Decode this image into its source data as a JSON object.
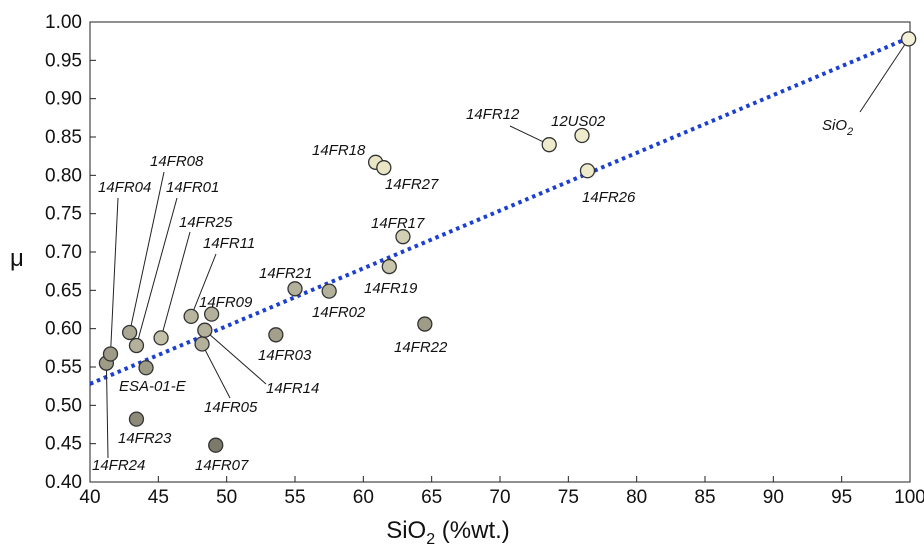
{
  "chart_data": {
    "type": "scatter",
    "title": "",
    "xlabel": "SiO",
    "xlabel_sub": "2",
    "xlabel_suffix": " (%wt.)",
    "ylabel": "μ",
    "xlim": [
      40,
      100
    ],
    "ylim": [
      0.4,
      1.0
    ],
    "x_ticks": [
      "40",
      "45",
      "50",
      "55",
      "60",
      "65",
      "70",
      "75",
      "80",
      "85",
      "90",
      "95",
      "100"
    ],
    "y_ticks": [
      "0.40",
      "0.45",
      "0.50",
      "0.55",
      "0.60",
      "0.65",
      "0.70",
      "0.75",
      "0.80",
      "0.85",
      "0.90",
      "0.95",
      "1.00"
    ],
    "grid": false,
    "trend_line": {
      "from": [
        40,
        0.528
      ],
      "to": [
        100,
        0.98
      ],
      "style": "dotted",
      "color": "#1a3fd1"
    },
    "points": [
      {
        "label": "14FR24",
        "x": 41.2,
        "y": 0.555,
        "color": "#9e9b87"
      },
      {
        "label": "14FR04",
        "x": 41.5,
        "y": 0.567,
        "color": "#9e9b87"
      },
      {
        "label": "14FR08",
        "x": 42.9,
        "y": 0.595,
        "color": "#aaa892"
      },
      {
        "label": "14FR01",
        "x": 43.4,
        "y": 0.578,
        "color": "#b3b19c"
      },
      {
        "label": "14FR23",
        "x": 43.4,
        "y": 0.482,
        "color": "#8d8a7a"
      },
      {
        "label": "ESA-01-E",
        "x": 44.1,
        "y": 0.549,
        "color": "#9e9b87"
      },
      {
        "label": "14FR25",
        "x": 45.2,
        "y": 0.588,
        "color": "#c2c0a6"
      },
      {
        "label": "14FR11",
        "x": 47.4,
        "y": 0.616,
        "color": "#b8b59f"
      },
      {
        "label": "14FR05",
        "x": 48.2,
        "y": 0.58,
        "color": "#b3b19c"
      },
      {
        "label": "14FR14",
        "x": 48.4,
        "y": 0.598,
        "color": "#b3b19c"
      },
      {
        "label": "14FR09",
        "x": 48.9,
        "y": 0.619,
        "color": "#b3b19c"
      },
      {
        "label": "14FR07",
        "x": 49.2,
        "y": 0.448,
        "color": "#7c7a6a"
      },
      {
        "label": "14FR03",
        "x": 53.6,
        "y": 0.592,
        "color": "#a39f8b"
      },
      {
        "label": "14FR21",
        "x": 55.0,
        "y": 0.652,
        "color": "#b3b19c"
      },
      {
        "label": "14FR02",
        "x": 57.5,
        "y": 0.649,
        "color": "#b3b19c"
      },
      {
        "label": "14FR18",
        "x": 60.9,
        "y": 0.817,
        "color": "#e9e6c6"
      },
      {
        "label": "14FR27",
        "x": 61.5,
        "y": 0.81,
        "color": "#e9e6c6"
      },
      {
        "label": "14FR19",
        "x": 61.9,
        "y": 0.681,
        "color": "#c8c6ac"
      },
      {
        "label": "14FR17",
        "x": 62.9,
        "y": 0.72,
        "color": "#d2cfb4"
      },
      {
        "label": "14FR22",
        "x": 64.5,
        "y": 0.606,
        "color": "#9e9b87"
      },
      {
        "label": "14FR12",
        "x": 73.6,
        "y": 0.84,
        "color": "#eeebcc"
      },
      {
        "label": "12US02",
        "x": 76.0,
        "y": 0.852,
        "color": "#eeebcc"
      },
      {
        "label": "14FR26",
        "x": 76.4,
        "y": 0.806,
        "color": "#eeebcc"
      },
      {
        "label": "SiO",
        "label_sub": "2",
        "x": 99.9,
        "y": 0.978,
        "color": "#f4f1d8"
      }
    ]
  }
}
